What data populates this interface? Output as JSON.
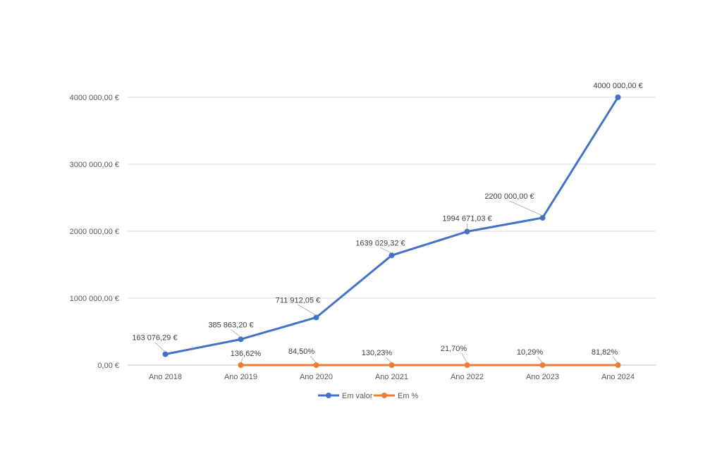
{
  "chart_data": {
    "type": "line",
    "title": "",
    "xlabel": "",
    "ylabel": "",
    "categories": [
      "Ano 2018",
      "Ano 2019",
      "Ano 2020",
      "Ano 2021",
      "Ano 2022",
      "Ano 2023",
      "Ano 2024"
    ],
    "ylim": [
      0,
      4000000
    ],
    "y_ticks": [
      {
        "value": 0,
        "label": "0,00 €"
      },
      {
        "value": 1000000,
        "label": "1000 000,00 €"
      },
      {
        "value": 2000000,
        "label": "2000 000,00 €"
      },
      {
        "value": 3000000,
        "label": "3000 000,00 €"
      },
      {
        "value": 4000000,
        "label": "4000 000,00 €"
      }
    ],
    "grid": true,
    "legend_position": "bottom",
    "series": [
      {
        "name": "Em valor",
        "color": "#4472C4",
        "values": [
          163076.29,
          385863.2,
          711912.05,
          1639029.32,
          1994671.03,
          2200000.0,
          4000000.0
        ],
        "labels": [
          "163 076,29 €",
          "385 863,20 €",
          "711 912,05 €",
          "1639 029,32 €",
          "1994 671,03 €",
          "2200 000,00 €",
          "4000 000,00 €"
        ]
      },
      {
        "name": "Em %",
        "color": "#ED7D31",
        "values": [
          null,
          1.3662,
          0.845,
          1.3023,
          0.217,
          0.1029,
          0.8182
        ],
        "labels": [
          null,
          "136,62%",
          "84,50%",
          "130,23%",
          "21,70%",
          "10,29%",
          "81,82%"
        ]
      }
    ]
  }
}
